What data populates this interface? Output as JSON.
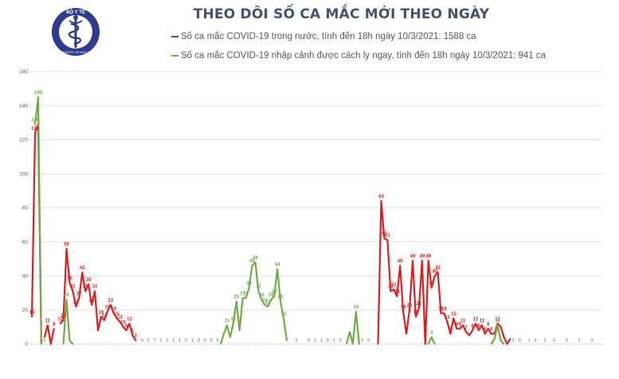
{
  "title": "THEO DÕI SỐ CA MẮC MỚI THEO NGÀY",
  "logo": {
    "icon": "moh-caduceus-logo-icon",
    "ring_text_top": "BỘ Y TẾ",
    "ring_text_bottom": "MINISTRY OF HEALTH"
  },
  "legend": [
    {
      "label": "Số ca mắc COVID-19 trong nước, tính đến 18h ngày 10/3/2021: 1588 ca",
      "color": "#e02020"
    },
    {
      "label": "Số ca mắc COVID-19 nhập cảnh được cách ly ngay, tính đến 18h ngày 10/3/2021: 941 ca",
      "color": "#70ad47"
    }
  ],
  "chart_data": {
    "type": "line",
    "ylim": [
      0,
      160
    ],
    "yticks": [
      0,
      20,
      40,
      60,
      80,
      100,
      120,
      140,
      160
    ],
    "grid": true,
    "legend_position": "top",
    "x_count": 182,
    "series": [
      {
        "name": "Số ca mắc COVID-19 trong nước, tính đến 18h ngày 10/3/2021: 1588 ca",
        "color": "#e02020",
        "segments": [
          {
            "points": [
              [
                0,
                16
              ],
              [
                1,
                124
              ],
              [
                2,
                129
              ],
              [
                3,
                0
              ]
            ],
            "labels": [
              [
                0,
                "16"
              ],
              [
                1,
                "124"
              ]
            ]
          },
          {
            "points": [
              [
                4,
                4
              ],
              [
                5,
                11
              ],
              [
                6,
                0
              ],
              [
                7,
                9
              ]
            ],
            "labels": [
              [
                5,
                "11"
              ],
              [
                7,
                "9"
              ]
            ]
          },
          {
            "points": [
              [
                9,
                12
              ],
              [
                10,
                14
              ],
              [
                11,
                56
              ],
              [
                12,
                36
              ],
              [
                13,
                31
              ],
              [
                14,
                22
              ],
              [
                15,
                27
              ],
              [
                16,
                42
              ],
              [
                17,
                31
              ],
              [
                18,
                35
              ],
              [
                19,
                23
              ],
              [
                20,
                31
              ],
              [
                21,
                8
              ],
              [
                22,
                16
              ],
              [
                23,
                14
              ],
              [
                24,
                19
              ],
              [
                25,
                23
              ],
              [
                26,
                18
              ],
              [
                27,
                15
              ],
              [
                28,
                13
              ],
              [
                29,
                10
              ],
              [
                30,
                8
              ],
              [
                31,
                12
              ],
              [
                32,
                5
              ],
              [
                33,
                2
              ]
            ],
            "labels": [
              [
                9,
                "12"
              ],
              [
                10,
                "14"
              ],
              [
                11,
                "56"
              ],
              [
                12,
                "36"
              ],
              [
                13,
                "31"
              ],
              [
                14,
                "22"
              ],
              [
                15,
                "27"
              ],
              [
                16,
                "42"
              ],
              [
                17,
                "31"
              ],
              [
                18,
                "35"
              ],
              [
                19,
                "23"
              ],
              [
                20,
                "31"
              ],
              [
                22,
                "16"
              ],
              [
                23,
                "14"
              ],
              [
                24,
                "19"
              ],
              [
                25,
                "23"
              ],
              [
                26,
                "18"
              ],
              [
                27,
                "15"
              ],
              [
                28,
                "13"
              ],
              [
                29,
                "10"
              ],
              [
                30,
                "8"
              ],
              [
                31,
                "12"
              ],
              [
                32,
                "5"
              ],
              [
                33,
                "2"
              ]
            ]
          },
          {
            "points": [
              [
                110,
                0
              ],
              [
                111,
                84
              ],
              [
                112,
                62
              ],
              [
                113,
                61
              ],
              [
                114,
                31
              ],
              [
                115,
                32
              ],
              [
                116,
                28
              ],
              [
                117,
                46
              ],
              [
                118,
                19
              ],
              [
                119,
                6
              ],
              [
                120,
                20
              ],
              [
                121,
                49
              ],
              [
                122,
                16
              ],
              [
                123,
                21
              ],
              [
                124,
                49
              ],
              [
                125,
                0
              ],
              [
                126,
                49
              ],
              [
                127,
                33
              ],
              [
                128,
                40
              ],
              [
                129,
                42
              ],
              [
                130,
                18
              ],
              [
                131,
                18
              ],
              [
                132,
                13
              ],
              [
                133,
                6
              ],
              [
                134,
                15
              ],
              [
                135,
                9
              ],
              [
                136,
                9
              ],
              [
                137,
                11
              ],
              [
                138,
                7
              ],
              [
                139,
                5
              ],
              [
                140,
                8
              ],
              [
                141,
                12
              ],
              [
                142,
                8
              ],
              [
                143,
                11
              ],
              [
                144,
                6
              ],
              [
                145,
                9
              ],
              [
                146,
                6
              ],
              [
                147,
                6
              ],
              [
                148,
                12
              ],
              [
                149,
                10
              ],
              [
                150,
                4
              ],
              [
                151,
                0
              ],
              [
                152,
                3
              ]
            ],
            "labels": [
              [
                111,
                "84"
              ],
              [
                112,
                "62"
              ],
              [
                113,
                "61"
              ],
              [
                114,
                "31"
              ],
              [
                115,
                "32"
              ],
              [
                116,
                "28"
              ],
              [
                117,
                "46"
              ],
              [
                118,
                "19"
              ],
              [
                119,
                "6"
              ],
              [
                120,
                "20"
              ],
              [
                121,
                "49"
              ],
              [
                122,
                "16"
              ],
              [
                123,
                "21"
              ],
              [
                124,
                "49"
              ],
              [
                126,
                "49"
              ],
              [
                127,
                "33"
              ],
              [
                128,
                "40"
              ],
              [
                129,
                "42"
              ],
              [
                130,
                "18"
              ],
              [
                131,
                "18"
              ],
              [
                132,
                "13"
              ],
              [
                133,
                "6"
              ],
              [
                134,
                "15"
              ],
              [
                135,
                "9"
              ],
              [
                136,
                "9"
              ],
              [
                137,
                "11"
              ],
              [
                138,
                "7"
              ],
              [
                140,
                "8"
              ],
              [
                141,
                "12"
              ],
              [
                142,
                "8"
              ],
              [
                143,
                "11"
              ],
              [
                144,
                "6"
              ],
              [
                145,
                "9"
              ],
              [
                146,
                "6"
              ],
              [
                148,
                "12"
              ]
            ]
          }
        ]
      },
      {
        "name": "Số ca mắc COVID-19 nhập cảnh được cách ly ngay, tính đến 18h ngày 10/3/2021: 941 ca",
        "color": "#70ad47",
        "segments": [
          {
            "points": [
              [
                1,
                129
              ],
              [
                2,
                145
              ],
              [
                3,
                0
              ]
            ],
            "labels": [
              [
                1,
                "129"
              ],
              [
                2,
                "145"
              ]
            ]
          },
          {
            "points": [
              [
                10,
                0
              ],
              [
                11,
                26
              ],
              [
                12,
                2
              ],
              [
                13,
                0
              ]
            ],
            "labels": [
              [
                11,
                "26"
              ]
            ]
          },
          {
            "points": [
              [
                60,
                0
              ],
              [
                61,
                6
              ],
              [
                62,
                11
              ],
              [
                63,
                4
              ],
              [
                64,
                12
              ],
              [
                65,
                25
              ],
              [
                66,
                8
              ],
              [
                67,
                27
              ],
              [
                68,
                27
              ],
              [
                69,
                33
              ],
              [
                70,
                46
              ],
              [
                71,
                48
              ],
              [
                72,
                31
              ],
              [
                73,
                26
              ],
              [
                74,
                23
              ],
              [
                75,
                22
              ],
              [
                76,
                26
              ],
              [
                77,
                28
              ],
              [
                78,
                44
              ],
              [
                79,
                25
              ],
              [
                80,
                15
              ],
              [
                81,
                2
              ]
            ],
            "labels": [
              [
                62,
                "11"
              ],
              [
                64,
                "12"
              ],
              [
                65,
                "25"
              ],
              [
                67,
                "27"
              ],
              [
                68,
                "27"
              ],
              [
                69,
                "33"
              ],
              [
                70,
                "46"
              ],
              [
                71,
                "48"
              ],
              [
                72,
                "31"
              ],
              [
                73,
                "26"
              ],
              [
                74,
                "23"
              ],
              [
                75,
                "22"
              ],
              [
                76,
                "26"
              ],
              [
                77,
                "28"
              ],
              [
                78,
                "44"
              ],
              [
                79,
                "25"
              ],
              [
                80,
                "15"
              ]
            ]
          },
          {
            "points": [
              [
                100,
                0
              ],
              [
                101,
                7
              ],
              [
                102,
                0
              ],
              [
                103,
                19
              ],
              [
                104,
                0
              ]
            ],
            "labels": [
              [
                103,
                "19"
              ]
            ]
          },
          {
            "points": [
              [
                126,
                0
              ],
              [
                127,
                4
              ],
              [
                128,
                0
              ]
            ],
            "labels": [
              [
                127,
                "4"
              ]
            ]
          },
          {
            "points": [
              [
                146,
                0
              ],
              [
                147,
                3
              ],
              [
                148,
                11
              ],
              [
                149,
                2
              ],
              [
                150,
                0
              ]
            ],
            "labels": [
              [
                148,
                "11"
              ]
            ]
          }
        ]
      }
    ],
    "minor_labels": [
      [
        4,
        "0"
      ],
      [
        35,
        "0"
      ],
      [
        37,
        "2"
      ],
      [
        39,
        "7"
      ],
      [
        41,
        "1"
      ],
      [
        43,
        "1"
      ],
      [
        45,
        "1"
      ],
      [
        47,
        "1"
      ],
      [
        49,
        "0"
      ],
      [
        51,
        "1"
      ],
      [
        53,
        "3"
      ],
      [
        55,
        "0"
      ],
      [
        57,
        "0"
      ],
      [
        59,
        "0"
      ],
      [
        84,
        "3"
      ],
      [
        88,
        "0"
      ],
      [
        90,
        "1"
      ],
      [
        92,
        "1"
      ],
      [
        94,
        "0"
      ],
      [
        96,
        "1"
      ],
      [
        98,
        "0"
      ],
      [
        105,
        "0"
      ],
      [
        107,
        "0"
      ],
      [
        153,
        "1"
      ],
      [
        155,
        "0"
      ],
      [
        158,
        "1"
      ],
      [
        160,
        "0"
      ],
      [
        163,
        "1"
      ],
      [
        166,
        "0"
      ],
      [
        170,
        "0"
      ],
      [
        174,
        "1"
      ],
      [
        178,
        "0"
      ]
    ]
  }
}
